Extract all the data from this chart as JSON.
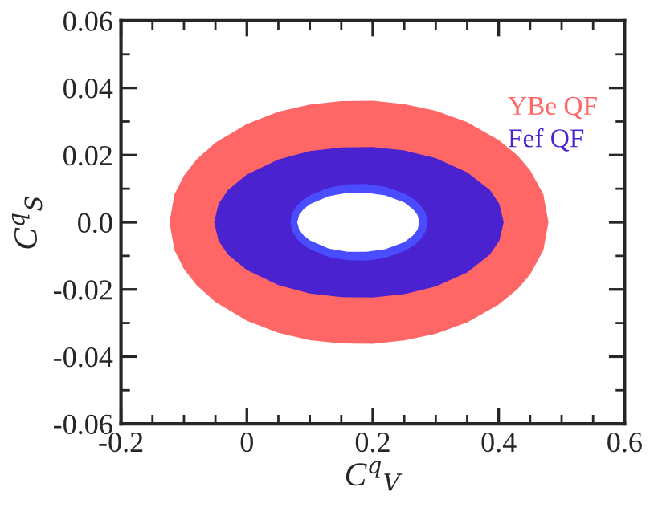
{
  "chart_data": {
    "type": "area",
    "xlabel": "C$^{q}$$_{V}$",
    "ylabel": "C$^{q}$$_{S}$",
    "xlim": [
      -0.2,
      0.6
    ],
    "ylim": [
      -0.06,
      0.06
    ],
    "xticks": [
      {
        "value": -0.2,
        "label": "-0.2"
      },
      {
        "value": -0.15,
        "label": null
      },
      {
        "value": -0.1,
        "label": null
      },
      {
        "value": -0.05,
        "label": null
      },
      {
        "value": 0,
        "label": "0"
      },
      {
        "value": 0.05,
        "label": null
      },
      {
        "value": 0.1,
        "label": null
      },
      {
        "value": 0.15,
        "label": null
      },
      {
        "value": 0.2,
        "label": "0.2"
      },
      {
        "value": 0.25,
        "label": null
      },
      {
        "value": 0.3,
        "label": null
      },
      {
        "value": 0.35,
        "label": null
      },
      {
        "value": 0.4,
        "label": "0.4"
      },
      {
        "value": 0.45,
        "label": null
      },
      {
        "value": 0.5,
        "label": null
      },
      {
        "value": 0.55,
        "label": null
      },
      {
        "value": 0.6,
        "label": "0.6"
      }
    ],
    "yticks": [
      {
        "value": -0.06,
        "label": "-0.06"
      },
      {
        "value": -0.05,
        "label": null
      },
      {
        "value": -0.04,
        "label": "-0.04"
      },
      {
        "value": -0.03,
        "label": null
      },
      {
        "value": -0.02,
        "label": "-0.02"
      },
      {
        "value": -0.01,
        "label": null
      },
      {
        "value": 0,
        "label": "0.0"
      },
      {
        "value": 0.01,
        "label": null
      },
      {
        "value": 0.02,
        "label": "0.02"
      },
      {
        "value": 0.03,
        "label": null
      },
      {
        "value": 0.04,
        "label": "0.04"
      },
      {
        "value": 0.05,
        "label": null
      },
      {
        "value": 0.06,
        "label": "0.06"
      }
    ],
    "grid": false,
    "legend": "top right",
    "series": [
      {
        "name": "YBe QF",
        "color": "#ff6666",
        "x": [
          -0.123,
          -0.115,
          -0.1,
          -0.08,
          -0.05,
          0,
          0.05,
          0.1,
          0.15,
          0.2,
          0.25,
          0.3,
          0.35,
          0.4,
          0.43,
          0.45,
          0.471,
          0.479
        ],
        "values": [
          0,
          0.0083,
          0.0139,
          0.0187,
          0.0237,
          0.0293,
          0.0329,
          0.0351,
          0.0361,
          0.0362,
          0.0352,
          0.0332,
          0.0298,
          0.0245,
          0.0199,
          0.0155,
          0.0083,
          0
        ]
      },
      {
        "color": "#ff6666",
        "x": [
          -0.123,
          -0.115,
          -0.1,
          -0.08,
          -0.05,
          0,
          0.05,
          0.1,
          0.15,
          0.2,
          0.25,
          0.3,
          0.35,
          0.4,
          0.43,
          0.45,
          0.471,
          0.479
        ],
        "values": [
          0,
          -0.0083,
          -0.0139,
          -0.0187,
          -0.0237,
          -0.0293,
          -0.0329,
          -0.0351,
          -0.0361,
          -0.0362,
          -0.0352,
          -0.0332,
          -0.0298,
          -0.0245,
          -0.0199,
          -0.0155,
          -0.0083,
          0
        ]
      },
      {
        "name": "Fef QF",
        "color": "#4a22d0",
        "x": [
          -0.052,
          -0.045,
          -0.03,
          0,
          0.05,
          0.1,
          0.15,
          0.2,
          0.25,
          0.3,
          0.35,
          0.386,
          0.401,
          0.408
        ],
        "values": [
          0,
          0.0055,
          0.0096,
          0.0142,
          0.0187,
          0.0212,
          0.0223,
          0.0224,
          0.0214,
          0.0191,
          0.0149,
          0.0096,
          0.0055,
          0
        ]
      },
      {
        "color": "#4a22d0",
        "x": [
          -0.052,
          -0.045,
          -0.03,
          0,
          0.05,
          0.1,
          0.15,
          0.2,
          0.25,
          0.3,
          0.35,
          0.386,
          0.401,
          0.408
        ],
        "values": [
          0,
          -0.0055,
          -0.0096,
          -0.0142,
          -0.0187,
          -0.0212,
          -0.0223,
          -0.0224,
          -0.0214,
          -0.0191,
          -0.0149,
          -0.0096,
          -0.0055,
          0
        ]
      },
      {
        "color": "#4a4dff",
        "x": [
          0.069,
          0.072,
          0.08,
          0.09,
          0.1,
          0.13,
          0.16,
          0.19,
          0.22,
          0.25,
          0.266,
          0.276,
          0.284,
          0.287
        ],
        "values": [
          0,
          0.0027,
          0.005,
          0.0068,
          0.008,
          0.0103,
          0.0113,
          0.0114,
          0.0106,
          0.0086,
          0.0068,
          0.005,
          0.0027,
          0
        ]
      },
      {
        "color": "#4a4dff",
        "x": [
          0.069,
          0.072,
          0.08,
          0.09,
          0.1,
          0.13,
          0.16,
          0.19,
          0.22,
          0.25,
          0.266,
          0.276,
          0.284,
          0.287
        ],
        "values": [
          0,
          -0.0027,
          -0.005,
          -0.0068,
          -0.008,
          -0.0103,
          -0.0113,
          -0.0114,
          -0.0106,
          -0.0086,
          -0.0068,
          -0.005,
          -0.0027,
          0
        ]
      },
      {
        "color": "#ffffff",
        "x": [
          0.08,
          0.083,
          0.09,
          0.1,
          0.13,
          0.16,
          0.19,
          0.22,
          0.25,
          0.264,
          0.271,
          0.274
        ],
        "values": [
          0,
          0.0022,
          0.0039,
          0.0054,
          0.0078,
          0.0088,
          0.0088,
          0.008,
          0.0059,
          0.0039,
          0.0022,
          0
        ]
      },
      {
        "color": "#ffffff",
        "x": [
          0.08,
          0.083,
          0.09,
          0.1,
          0.13,
          0.16,
          0.19,
          0.22,
          0.25,
          0.264,
          0.271,
          0.274
        ],
        "values": [
          0,
          -0.0022,
          -0.0039,
          -0.0054,
          -0.0078,
          -0.0088,
          -0.0088,
          -0.008,
          -0.0059,
          -0.0039,
          -0.0022,
          0
        ]
      }
    ]
  }
}
